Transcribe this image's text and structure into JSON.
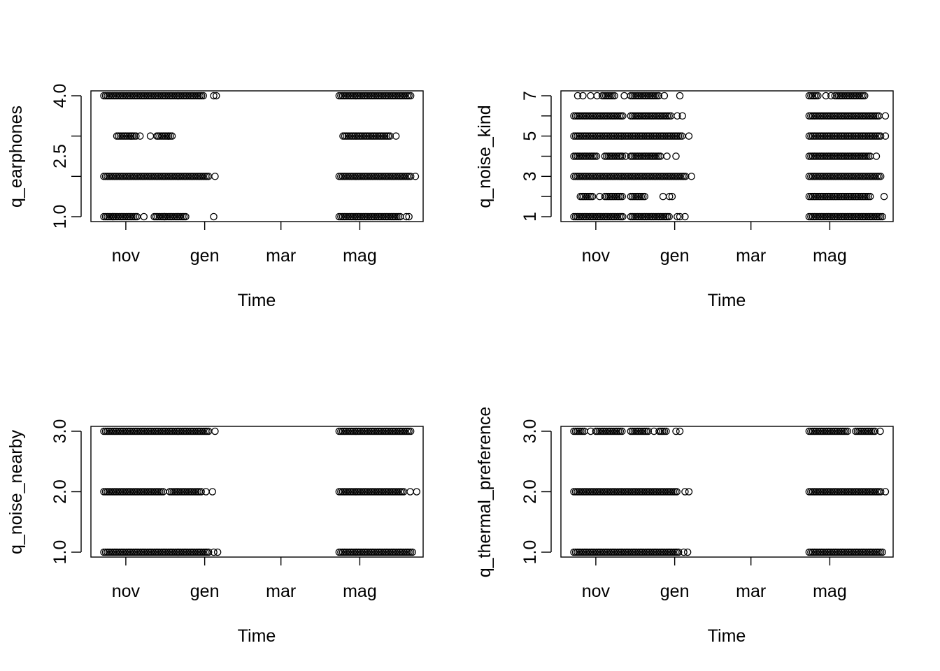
{
  "chart_data": [
    {
      "type": "scatter",
      "xlabel": "Time",
      "ylabel": "q_earphones",
      "x_ticks": [
        "nov",
        "gen",
        "mar",
        "mag"
      ],
      "y_ticks": [
        "1.0",
        "2.5",
        "4.0"
      ],
      "ylim": [
        1,
        4
      ],
      "y_levels": [
        1,
        2,
        3,
        4
      ],
      "series": [
        {
          "y": 4,
          "points": [
            [
              "2021-10-15",
              "2021-12-31"
            ],
            [
              "2022-04-15",
              "2022-06-10"
            ]
          ],
          "outliers": [
            "2022-01-08",
            "2022-01-10"
          ]
        },
        {
          "y": 3,
          "points": [
            [
              "2021-10-25",
              "2021-11-10"
            ],
            [
              "2021-11-26",
              "2021-12-08"
            ],
            [
              "2022-04-18",
              "2022-05-25"
            ]
          ],
          "outliers": [
            "2021-11-05",
            "2021-11-12",
            "2021-11-20",
            "2021-11-25",
            "2021-12-04",
            "2022-05-29"
          ]
        },
        {
          "y": 2,
          "points": [
            [
              "2021-10-15",
              "2022-01-05"
            ],
            [
              "2022-04-15",
              "2022-06-10"
            ]
          ],
          "outliers": [
            "2022-01-09",
            "2022-06-13"
          ]
        },
        {
          "y": 1,
          "points": [
            [
              "2021-10-15",
              "2021-11-10"
            ],
            [
              "2021-11-23",
              "2021-12-18"
            ],
            [
              "2022-04-15",
              "2022-06-02"
            ]
          ],
          "outliers": [
            "2021-10-22",
            "2021-11-15",
            "2021-12-01",
            "2022-01-08",
            "2022-06-06",
            "2022-06-08"
          ]
        }
      ]
    },
    {
      "type": "scatter",
      "xlabel": "Time",
      "ylabel": "q_noise_kind",
      "x_ticks": [
        "nov",
        "gen",
        "mar",
        "mag"
      ],
      "y_ticks": [
        "1",
        "3",
        "5",
        "7"
      ],
      "ylim": [
        1,
        7
      ],
      "y_levels": [
        1,
        2,
        3,
        4,
        5,
        6,
        7
      ],
      "series": [
        {
          "y": 7,
          "points": [
            [
              "2021-11-06",
              "2021-11-16"
            ],
            [
              "2021-11-28",
              "2021-12-20"
            ],
            [
              "2022-04-15",
              "2022-04-22"
            ],
            [
              "2022-05-05",
              "2022-05-28"
            ]
          ],
          "outliers": [
            "2021-10-18",
            "2021-10-22",
            "2021-10-28",
            "2021-11-02",
            "2021-11-23",
            "2021-12-24",
            "2022-01-05",
            "2022-04-28",
            "2022-05-02"
          ]
        },
        {
          "y": 6,
          "points": [
            [
              "2021-10-15",
              "2021-11-22"
            ],
            [
              "2021-11-28",
              "2021-12-30"
            ],
            [
              "2022-04-15",
              "2022-06-08"
            ]
          ],
          "outliers": [
            "2022-01-03",
            "2022-01-07",
            "2022-06-13"
          ]
        },
        {
          "y": 5,
          "points": [
            [
              "2021-10-15",
              "2022-01-08"
            ],
            [
              "2022-04-15",
              "2022-06-10"
            ]
          ],
          "outliers": [
            "2022-01-12",
            "2022-06-13"
          ]
        },
        {
          "y": 4,
          "points": [
            [
              "2021-10-15",
              "2021-11-02"
            ],
            [
              "2021-11-08",
              "2021-11-22"
            ],
            [
              "2021-11-28",
              "2021-12-22"
            ],
            [
              "2022-04-15",
              "2022-06-02"
            ]
          ],
          "outliers": [
            "2021-11-24",
            "2021-12-26",
            "2022-01-02",
            "2022-06-06"
          ]
        },
        {
          "y": 3,
          "points": [
            [
              "2021-10-15",
              "2022-01-10"
            ],
            [
              "2022-04-15",
              "2022-06-10"
            ]
          ],
          "outliers": [
            "2022-01-14"
          ]
        },
        {
          "y": 2,
          "points": [
            [
              "2021-10-20",
              "2021-10-30"
            ],
            [
              "2021-11-08",
              "2021-11-22"
            ],
            [
              "2021-11-28",
              "2021-12-10"
            ],
            [
              "2022-04-15",
              "2022-06-02"
            ]
          ],
          "outliers": [
            "2021-11-04",
            "2021-12-23",
            "2021-12-28",
            "2021-12-30",
            "2022-06-12"
          ]
        },
        {
          "y": 1,
          "points": [
            [
              "2021-10-15",
              "2021-11-22"
            ],
            [
              "2021-11-28",
              "2021-12-28"
            ],
            [
              "2022-04-15",
              "2022-06-12"
            ]
          ],
          "outliers": [
            "2022-01-03",
            "2022-01-05",
            "2022-01-09"
          ]
        }
      ]
    },
    {
      "type": "scatter",
      "xlabel": "Time",
      "ylabel": "q_noise_nearby",
      "x_ticks": [
        "nov",
        "gen",
        "mar",
        "mag"
      ],
      "y_ticks": [
        "1.0",
        "2.0",
        "3.0"
      ],
      "ylim": [
        1,
        3
      ],
      "y_levels": [
        1,
        2,
        3
      ],
      "series": [
        {
          "y": 3,
          "points": [
            [
              "2021-10-15",
              "2022-01-05"
            ],
            [
              "2022-04-15",
              "2022-06-10"
            ]
          ],
          "outliers": [
            "2022-01-09"
          ]
        },
        {
          "y": 2,
          "points": [
            [
              "2021-10-15",
              "2021-12-01"
            ],
            [
              "2021-12-05",
              "2021-12-30"
            ],
            [
              "2022-04-15",
              "2022-06-05"
            ]
          ],
          "outliers": [
            "2022-01-02",
            "2022-01-07",
            "2022-06-09",
            "2022-06-14"
          ]
        },
        {
          "y": 1,
          "points": [
            [
              "2021-10-15",
              "2022-01-05"
            ],
            [
              "2022-04-15",
              "2022-06-12"
            ]
          ],
          "outliers": [
            "2022-01-08",
            "2022-01-11"
          ]
        }
      ]
    },
    {
      "type": "scatter",
      "xlabel": "Time",
      "ylabel": "q_thermal_preference",
      "x_ticks": [
        "nov",
        "gen",
        "mar",
        "mag"
      ],
      "y_ticks": [
        "1.0",
        "2.0",
        "3.0"
      ],
      "ylim": [
        1,
        3
      ],
      "y_levels": [
        1,
        2,
        3
      ],
      "series": [
        {
          "y": 3,
          "points": [
            [
              "2021-10-15",
              "2021-10-24"
            ],
            [
              "2021-11-01",
              "2021-11-22"
            ],
            [
              "2021-11-28",
              "2021-12-12"
            ],
            [
              "2021-12-20",
              "2021-12-26"
            ],
            [
              "2022-04-15",
              "2022-05-15"
            ],
            [
              "2022-05-21",
              "2022-06-05"
            ]
          ],
          "outliers": [
            "2021-10-28",
            "2021-12-16",
            "2022-01-02",
            "2022-01-05",
            "2022-06-09"
          ]
        },
        {
          "y": 2,
          "points": [
            [
              "2021-10-15",
              "2022-01-03"
            ],
            [
              "2022-04-15",
              "2022-06-10"
            ]
          ],
          "outliers": [
            "2022-01-09",
            "2022-01-12",
            "2022-06-13"
          ]
        },
        {
          "y": 1,
          "points": [
            [
              "2021-10-15",
              "2022-01-05"
            ],
            [
              "2022-04-15",
              "2022-06-12"
            ]
          ],
          "outliers": [
            "2022-01-08",
            "2022-01-11"
          ]
        }
      ]
    }
  ]
}
